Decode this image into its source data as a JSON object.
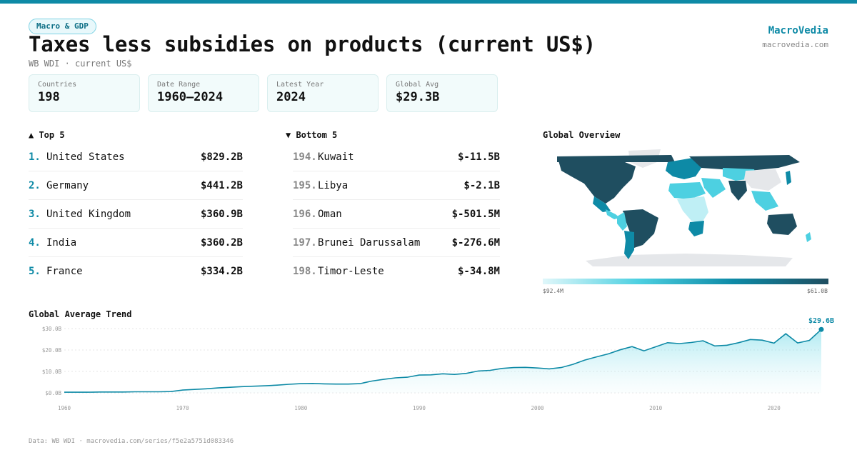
{
  "tag": "Macro & GDP",
  "title": "Taxes less subsidies on products (current US$)",
  "subtitle": "WB WDI · current US$",
  "brand": {
    "name": "MacroVedia",
    "url": "macrovedia.com"
  },
  "stats": [
    {
      "label": "Countries",
      "value": "198"
    },
    {
      "label": "Date Range",
      "value": "1960–2024"
    },
    {
      "label": "Latest Year",
      "value": "2024"
    },
    {
      "label": "Global Avg",
      "value": "$29.3B"
    }
  ],
  "top5": {
    "title": "▲ Top 5",
    "items": [
      {
        "rank": "1.",
        "name": "United States",
        "value": "$829.2B"
      },
      {
        "rank": "2.",
        "name": "Germany",
        "value": "$441.2B"
      },
      {
        "rank": "3.",
        "name": "United Kingdom",
        "value": "$360.9B"
      },
      {
        "rank": "4.",
        "name": "India",
        "value": "$360.2B"
      },
      {
        "rank": "5.",
        "name": "France",
        "value": "$334.2B"
      }
    ]
  },
  "bottom5": {
    "title": "▼ Bottom 5",
    "items": [
      {
        "rank": "194.",
        "name": "Kuwait",
        "value": "$-11.5B"
      },
      {
        "rank": "195.",
        "name": "Libya",
        "value": "$-2.1B"
      },
      {
        "rank": "196.",
        "name": "Oman",
        "value": "$-501.5M"
      },
      {
        "rank": "197.",
        "name": "Brunei Darussalam",
        "value": "$-276.6M"
      },
      {
        "rank": "198.",
        "name": "Timor-Leste",
        "value": "$-34.8M"
      }
    ]
  },
  "map": {
    "title": "Global Overview",
    "legend_min": "$92.4M",
    "legend_max": "$61.0B",
    "colors": {
      "low": "#e0f7fa",
      "mid": "#4dd0e1",
      "high": "#0e8aa6",
      "max": "#1f4e60",
      "nodata": "#e5e7ea"
    }
  },
  "chart_data": {
    "type": "area",
    "title": "Global Average Trend",
    "xlabel": "",
    "ylabel": "",
    "x_ticks": [
      1960,
      1970,
      1980,
      1990,
      2000,
      2010,
      2020
    ],
    "y_ticks": [
      "$0.0B",
      "$10.0B",
      "$20.0B",
      "$30.0B"
    ],
    "y_tick_values": [
      0,
      10,
      20,
      30
    ],
    "xlim": [
      1960,
      2024
    ],
    "ylim": [
      0,
      32
    ],
    "end_label": "$29.6B",
    "color": "#0e8aa6",
    "series": [
      {
        "x": [
          1960,
          1961,
          1962,
          1963,
          1964,
          1965,
          1966,
          1967,
          1968,
          1969,
          1970,
          1971,
          1972,
          1973,
          1974,
          1975,
          1976,
          1977,
          1978,
          1979,
          1980,
          1981,
          1982,
          1983,
          1984,
          1985,
          1986,
          1987,
          1988,
          1989,
          1990,
          1991,
          1992,
          1993,
          1994,
          1995,
          1996,
          1997,
          1998,
          1999,
          2000,
          2001,
          2002,
          2003,
          2004,
          2005,
          2006,
          2007,
          2008,
          2009,
          2010,
          2011,
          2012,
          2013,
          2014,
          2015,
          2016,
          2017,
          2018,
          2019,
          2020,
          2021,
          2022,
          2023,
          2024
        ],
        "values": [
          0.3,
          0.3,
          0.3,
          0.4,
          0.4,
          0.4,
          0.5,
          0.5,
          0.5,
          0.6,
          1.3,
          1.6,
          1.9,
          2.3,
          2.6,
          2.9,
          3.1,
          3.3,
          3.6,
          4.0,
          4.3,
          4.4,
          4.2,
          4.1,
          4.1,
          4.3,
          5.5,
          6.3,
          7.0,
          7.3,
          8.3,
          8.4,
          8.9,
          8.6,
          9.1,
          10.2,
          10.5,
          11.4,
          11.8,
          11.9,
          11.6,
          11.2,
          11.8,
          13.3,
          15.3,
          16.8,
          18.2,
          20.1,
          21.6,
          19.6,
          21.5,
          23.4,
          23.0,
          23.5,
          24.3,
          21.9,
          22.2,
          23.4,
          24.9,
          24.6,
          23.2,
          27.6,
          23.3,
          24.5,
          29.6
        ]
      }
    ]
  },
  "footer": "Data: WB WDI · macrovedia.com/series/f5e2a5751d083346"
}
